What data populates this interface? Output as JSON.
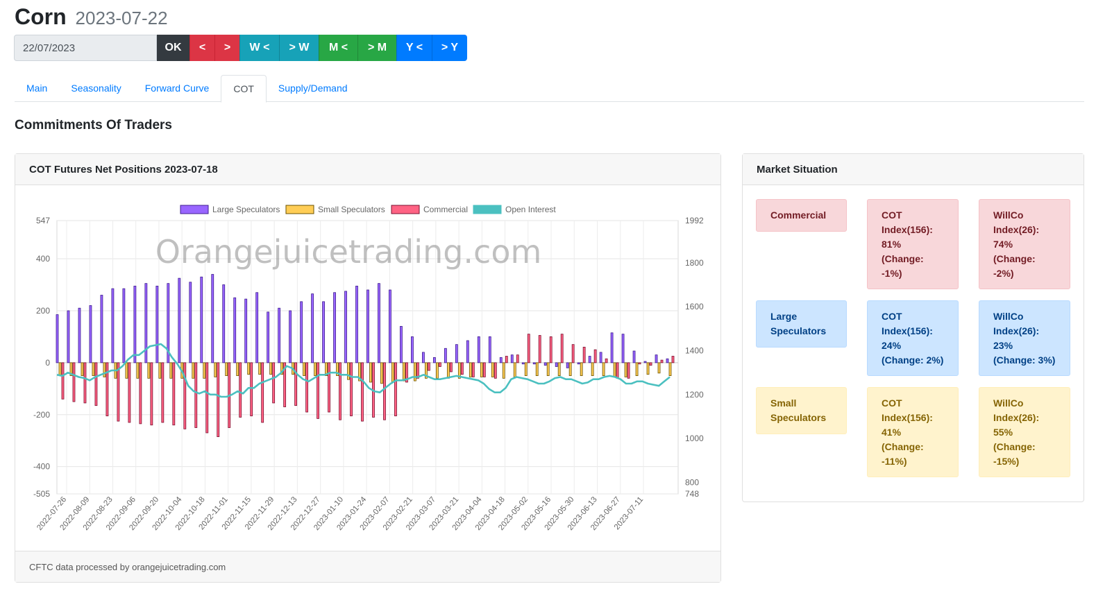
{
  "header": {
    "title": "Corn",
    "date": "2023-07-22"
  },
  "controls": {
    "date_value": "22/07/2023",
    "ok": "OK",
    "day_prev": "<",
    "day_next": ">",
    "week_prev": "W <",
    "week_next": "> W",
    "month_prev": "M <",
    "month_next": "> M",
    "year_prev": "Y <",
    "year_next": "> Y"
  },
  "tabs": [
    "Main",
    "Seasonality",
    "Forward Curve",
    "COT",
    "Supply/Demand"
  ],
  "active_tab": "COT",
  "section_title": "Commitments Of Traders",
  "chart_card": {
    "title": "COT Futures Net Positions 2023-07-18",
    "footer": "CFTC data processed by orangejuicetrading.com"
  },
  "watermark": "Orangejuicetrading.com",
  "chart_data": {
    "type": "bar",
    "title": "",
    "legend_position": "top-center",
    "grid": true,
    "y_left": {
      "min": -505,
      "max": 547,
      "ticks": [
        547,
        400,
        200,
        0,
        -200,
        -400,
        -505
      ]
    },
    "y_right": {
      "min": 748,
      "max": 1992,
      "ticks": [
        1992,
        1800,
        1600,
        1400,
        1200,
        1000,
        800,
        748
      ]
    },
    "x_labels": [
      "2022-07-26",
      "2022-08-09",
      "2022-08-23",
      "2022-09-06",
      "2022-09-20",
      "2022-10-04",
      "2022-10-18",
      "2022-11-01",
      "2022-11-15",
      "2022-11-29",
      "2022-12-13",
      "2022-12-27",
      "2023-01-10",
      "2023-01-24",
      "2023-02-07",
      "2023-02-21",
      "2023-03-07",
      "2023-03-21",
      "2023-04-04",
      "2023-04-18",
      "2023-05-02",
      "2023-05-16",
      "2023-05-30",
      "2023-06-13",
      "2023-06-27",
      "2023-07-11"
    ],
    "colors": {
      "large": "#9966ff",
      "small": "#ffcd56",
      "commercial": "#ff6384",
      "open_interest": "#4bc0c0"
    },
    "series": [
      {
        "name": "Large Speculators",
        "axis": "left",
        "values": [
          185,
          200,
          210,
          220,
          260,
          285,
          285,
          295,
          305,
          295,
          305,
          325,
          310,
          330,
          340,
          300,
          250,
          245,
          270,
          195,
          210,
          200,
          235,
          265,
          235,
          270,
          275,
          295,
          280,
          305,
          280,
          140,
          100,
          40,
          20,
          55,
          70,
          85,
          100,
          100,
          20,
          30,
          -5,
          -5,
          -10,
          -15,
          -20,
          -5,
          25,
          40,
          115,
          110,
          45,
          5,
          30,
          15
        ]
      },
      {
        "name": "Small Speculators",
        "axis": "left",
        "values": [
          -50,
          -50,
          -50,
          -50,
          -55,
          -60,
          -60,
          -60,
          -60,
          -60,
          -60,
          -60,
          -60,
          -60,
          -55,
          -50,
          -50,
          -45,
          -45,
          -45,
          -45,
          -45,
          -50,
          -50,
          -50,
          -50,
          -65,
          -70,
          -75,
          -80,
          -75,
          -70,
          -70,
          -60,
          -60,
          -60,
          -60,
          -55,
          -55,
          -55,
          -60,
          -55,
          -50,
          -50,
          -50,
          -50,
          -50,
          -50,
          -50,
          -50,
          -55,
          -55,
          -50,
          -45,
          -40,
          -50
        ]
      },
      {
        "name": "Commercial",
        "axis": "left",
        "values": [
          -140,
          -150,
          -155,
          -165,
          -205,
          -225,
          -230,
          -235,
          -240,
          -230,
          -240,
          -255,
          -250,
          -270,
          -285,
          -250,
          -210,
          -205,
          -230,
          -155,
          -170,
          -165,
          -190,
          -215,
          -190,
          -220,
          -205,
          -225,
          -210,
          -220,
          -205,
          -75,
          -60,
          -30,
          -15,
          -35,
          -45,
          -55,
          -55,
          -60,
          25,
          30,
          110,
          105,
          100,
          110,
          70,
          60,
          50,
          15,
          -60,
          -60,
          -5,
          -10,
          10,
          25
        ]
      },
      {
        "name": "Open Interest",
        "axis": "right",
        "values": [
          1290,
          1285,
          1300,
          1290,
          1280,
          1275,
          1265,
          1280,
          1290,
          1300,
          1310,
          1310,
          1330,
          1360,
          1380,
          1380,
          1400,
          1420,
          1425,
          1430,
          1410,
          1370,
          1340,
          1300,
          1240,
          1215,
          1205,
          1215,
          1200,
          1200,
          1190,
          1190,
          1200,
          1215,
          1205,
          1230,
          1230,
          1250,
          1260,
          1270,
          1280,
          1300,
          1330,
          1320,
          1290,
          1270,
          1260,
          1275,
          1290,
          1290,
          1300,
          1300,
          1290,
          1290,
          1280,
          1280,
          1260,
          1230,
          1215,
          1210,
          1230,
          1250,
          1265,
          1265,
          1270,
          1280,
          1280,
          1290,
          1280,
          1270,
          1270,
          1275,
          1280,
          1285,
          1280,
          1275,
          1270,
          1265,
          1250,
          1225,
          1210,
          1210,
          1230,
          1270,
          1280,
          1275,
          1270,
          1260,
          1250,
          1250,
          1260,
          1275,
          1280,
          1270,
          1270,
          1260,
          1250,
          1255,
          1270,
          1270,
          1280,
          1285,
          1280,
          1270,
          1250,
          1250,
          1260,
          1260,
          1250,
          1245,
          1240,
          1260,
          1280
        ]
      }
    ]
  },
  "market": {
    "title": "Market Situation",
    "rows": [
      {
        "label": "Commercial",
        "cot": "COT Index(156): 81% (Change: -1%)",
        "willco": "WillCo Index(26): 74% (Change: -2%)"
      },
      {
        "label": "Large Speculators",
        "cot": "COT Index(156): 24% (Change: 2%)",
        "willco": "WillCo Index(26): 23% (Change: 3%)"
      },
      {
        "label": "Small Speculators",
        "cot": "COT Index(156): 41% (Change: -11%)",
        "willco": "WillCo Index(26): 55% (Change: -15%)"
      }
    ]
  }
}
